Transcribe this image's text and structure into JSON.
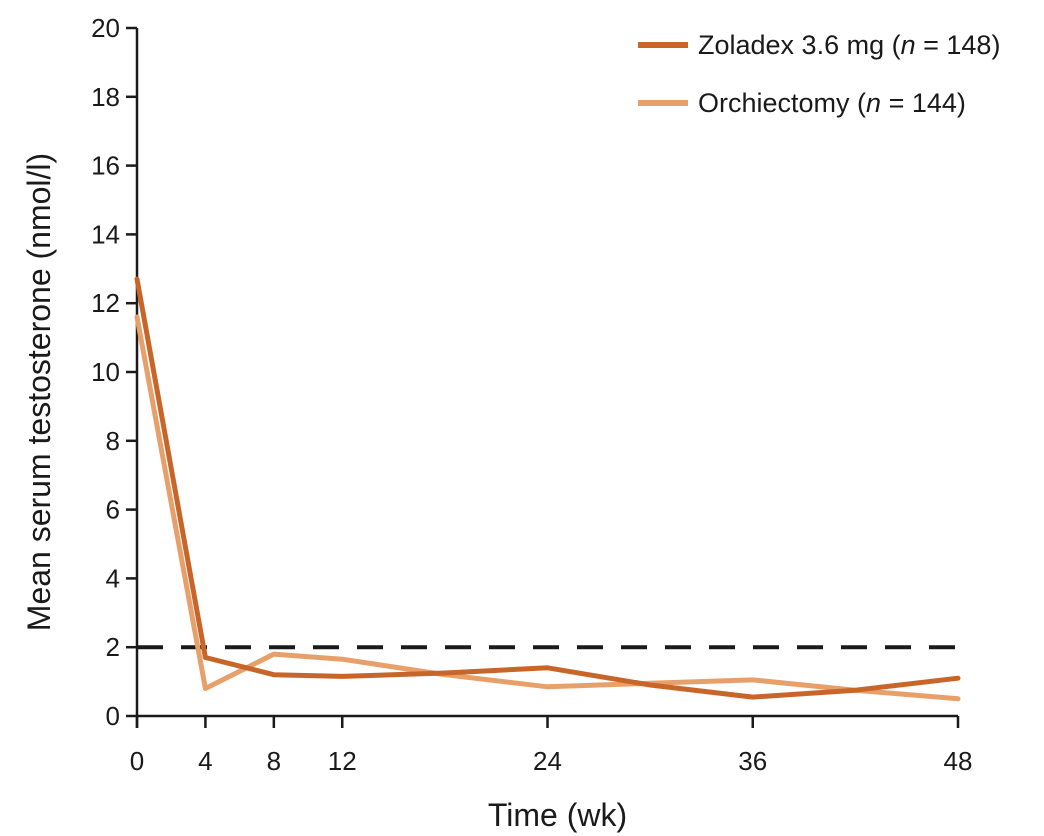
{
  "chart_data": {
    "type": "line",
    "xlabel": "Time (wk)",
    "ylabel": "Mean serum testosterone (nmol/l)",
    "xlim": [
      0,
      48
    ],
    "ylim": [
      0,
      20
    ],
    "xticks": [
      0,
      4,
      8,
      12,
      24,
      36,
      48
    ],
    "yticks": [
      0,
      2,
      4,
      6,
      8,
      10,
      12,
      14,
      16,
      18,
      20
    ],
    "grid": false,
    "legend_position": "top-right",
    "series": [
      {
        "name": "Zoladex 3.6 mg (n = 148)",
        "name_parts": [
          "Zoladex 3.6 mg (",
          "n",
          " = 148)"
        ],
        "color": "#c8662a",
        "x": [
          0,
          4,
          8,
          12,
          18,
          24,
          30,
          36,
          42,
          48
        ],
        "values": [
          12.7,
          1.7,
          1.2,
          1.15,
          1.25,
          1.4,
          0.9,
          0.55,
          0.75,
          1.1
        ]
      },
      {
        "name": "Orchiectomy (n = 144)",
        "name_parts": [
          "Orchiectomy (",
          "n",
          " = 144)"
        ],
        "color": "#e8a06a",
        "x": [
          0,
          4,
          8,
          12,
          18,
          24,
          30,
          36,
          42,
          48
        ],
        "values": [
          11.6,
          0.8,
          1.8,
          1.65,
          1.2,
          0.85,
          0.95,
          1.05,
          0.75,
          0.5
        ]
      }
    ],
    "reference_line": {
      "y": 2,
      "style": "dashed",
      "color": "#1a1a1a"
    }
  }
}
